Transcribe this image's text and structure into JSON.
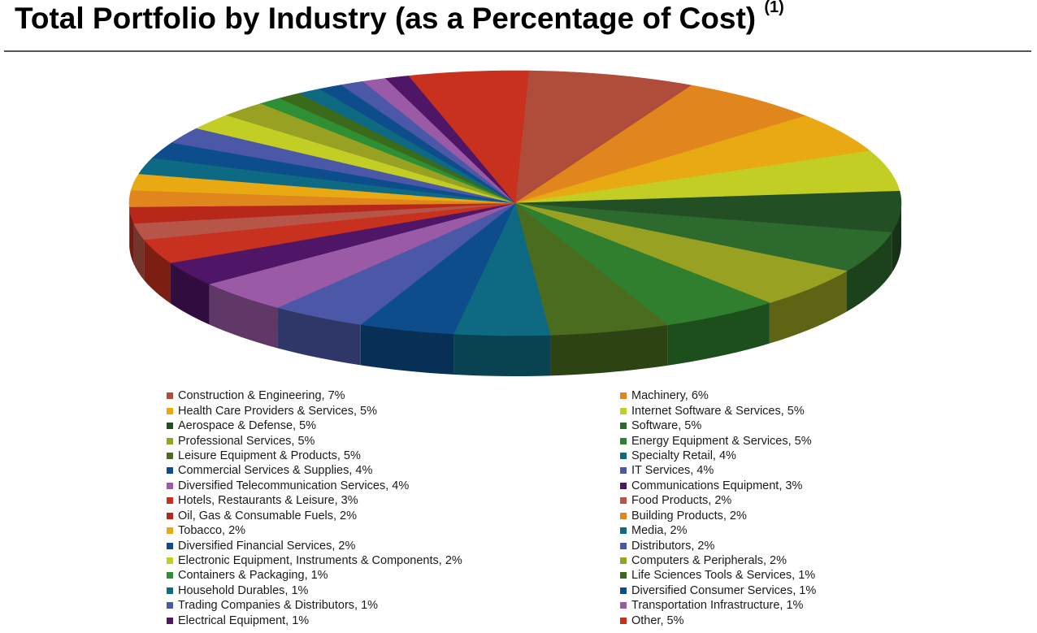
{
  "header": {
    "title": "Total Portfolio by Industry (as a Percentage of Cost)",
    "footnote": "(1)"
  },
  "chart_data": {
    "type": "pie",
    "style": "3d",
    "title": "Total Portfolio by Industry (as a Percentage of Cost)",
    "unit": "%",
    "slices": [
      {
        "label": "Construction & Engineering",
        "value": 7,
        "text": "Construction & Engineering, 7%",
        "color": "#b04d3a"
      },
      {
        "label": "Machinery",
        "value": 6,
        "text": "Machinery, 6%",
        "color": "#e0861c"
      },
      {
        "label": "Health Care Providers & Services",
        "value": 5,
        "text": "Health Care Providers & Services, 5%",
        "color": "#e8a912"
      },
      {
        "label": "Internet Software & Services",
        "value": 5,
        "text": "Internet Software & Services, 5%",
        "color": "#c3ce24"
      },
      {
        "label": "Aerospace & Defense",
        "value": 5,
        "text": "Aerospace & Defense, 5%",
        "color": "#234f25"
      },
      {
        "label": "Software",
        "value": 5,
        "text": "Software, 5%",
        "color": "#2d6a2d"
      },
      {
        "label": "Professional Services",
        "value": 5,
        "text": "Professional Services, 5%",
        "color": "#98a121"
      },
      {
        "label": "Energy Equipment & Services",
        "value": 5,
        "text": "Energy Equipment & Services, 5%",
        "color": "#2f7f2f"
      },
      {
        "label": "Leisure Equipment & Products",
        "value": 5,
        "text": "Leisure Equipment & Products, 5%",
        "color": "#4a6c1e"
      },
      {
        "label": "Specialty Retail",
        "value": 4,
        "text": "Specialty Retail, 4%",
        "color": "#0e6a82"
      },
      {
        "label": "Commercial Services & Supplies",
        "value": 4,
        "text": "Commercial Services & Supplies, 4%",
        "color": "#0d4d8c"
      },
      {
        "label": "IT Services",
        "value": 4,
        "text": "IT Services, 4%",
        "color": "#4b58a8"
      },
      {
        "label": "Diversified Telecommunication Services",
        "value": 4,
        "text": "Diversified Telecommunication Services, 4%",
        "color": "#9b5aa6"
      },
      {
        "label": "Communications Equipment",
        "value": 3,
        "text": "Communications Equipment, 3%",
        "color": "#4f1566"
      },
      {
        "label": "Hotels, Restaurants & Leisure",
        "value": 3,
        "text": "Hotels, Restaurants & Leisure, 3%",
        "color": "#c9311f"
      },
      {
        "label": "Food Products",
        "value": 2,
        "text": "Food Products, 2%",
        "color": "#b65548"
      },
      {
        "label": "Oil, Gas & Consumable Fuels",
        "value": 2,
        "text": "Oil, Gas & Consumable Fuels, 2%",
        "color": "#b8281a"
      },
      {
        "label": "Building Products",
        "value": 2,
        "text": "Building Products, 2%",
        "color": "#e0861c"
      },
      {
        "label": "Tobacco",
        "value": 2,
        "text": "Tobacco, 2%",
        "color": "#e8a912"
      },
      {
        "label": "Media",
        "value": 2,
        "text": "Media, 2%",
        "color": "#0e6a82"
      },
      {
        "label": "Diversified Financial Services",
        "value": 2,
        "text": "Diversified Financial Services, 2%",
        "color": "#0d4d8c"
      },
      {
        "label": "Distributors",
        "value": 2,
        "text": "Distributors, 2%",
        "color": "#4b58a8"
      },
      {
        "label": "Electronic Equipment, Instruments & Components",
        "value": 2,
        "text": "Electronic Equipment, Instruments & Components, 2%",
        "color": "#c3ce24"
      },
      {
        "label": "Computers & Peripherals",
        "value": 2,
        "text": "Computers & Peripherals, 2%",
        "color": "#98a121"
      },
      {
        "label": "Containers & Packaging",
        "value": 1,
        "text": "Containers & Packaging, 1%",
        "color": "#2f8f35"
      },
      {
        "label": "Life Sciences Tools & Services",
        "value": 1,
        "text": "Life Sciences Tools & Services, 1%",
        "color": "#3b6a1a"
      },
      {
        "label": "Household Durables",
        "value": 1,
        "text": "Household Durables, 1%",
        "color": "#0e6a82"
      },
      {
        "label": "Diversified Consumer Services",
        "value": 1,
        "text": "Diversified Consumer Services, 1%",
        "color": "#0d4d8c"
      },
      {
        "label": "Trading Companies & Distributors",
        "value": 1,
        "text": "Trading Companies & Distributors, 1%",
        "color": "#4b58a8"
      },
      {
        "label": "Transportation Infrastructure",
        "value": 1,
        "text": "Transportation Infrastructure, 1%",
        "color": "#9b5aa6"
      },
      {
        "label": "Electrical Equipment",
        "value": 1,
        "text": "Electrical Equipment, 1%",
        "color": "#4f1566"
      },
      {
        "label": "Other",
        "value": 5,
        "text": "Other, 5%",
        "color": "#c9311f"
      }
    ]
  }
}
